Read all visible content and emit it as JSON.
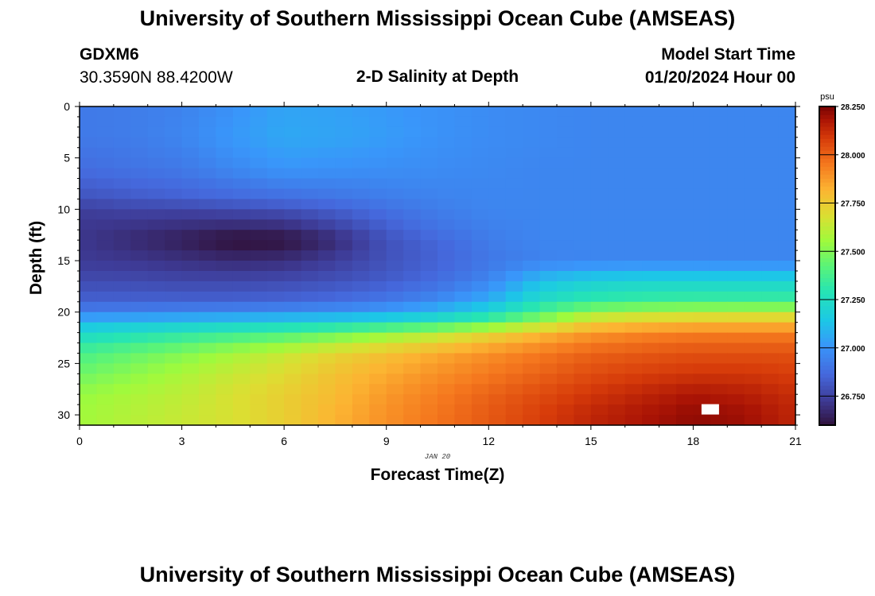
{
  "header": {
    "title": "University of Southern Mississippi Ocean Cube (AMSEAS)",
    "station_id": "GDXM6",
    "coords": "30.3590N  88.4200W",
    "subtitle": "2-D Salinity at Depth",
    "model_start_label": "Model Start Time",
    "model_start_value": "01/20/2024 Hour 00",
    "footer_title": "University of Southern Mississippi Ocean Cube (AMSEAS)"
  },
  "chart_data": {
    "type": "heatmap",
    "title": "2-D Salinity at Depth",
    "xlabel": "Forecast Time(Z)",
    "ylabel": "Depth (ft)",
    "date_label": "JAN 20",
    "xlim": [
      0,
      21
    ],
    "ylim": [
      0,
      31
    ],
    "x_ticks": [
      0,
      3,
      6,
      9,
      12,
      15,
      18,
      21
    ],
    "y_ticks": [
      0,
      5,
      10,
      15,
      20,
      25,
      30
    ],
    "colorbar": {
      "unit": "psu",
      "min": 26.6,
      "max": 28.25,
      "ticks": [
        "26.750",
        "27.000",
        "27.250",
        "27.500",
        "27.750",
        "28.000",
        "28.250"
      ],
      "tick_values": [
        26.75,
        27.0,
        27.25,
        27.5,
        27.75,
        28.0,
        28.25
      ]
    },
    "x_hours": [
      0,
      1.5,
      3,
      4.5,
      6,
      7.5,
      9,
      10.5,
      12,
      13.5,
      15,
      16.5,
      18,
      19.5,
      21
    ],
    "depths_ft": [
      0,
      3,
      6,
      9,
      10,
      12,
      13,
      15,
      17,
      19,
      20,
      21,
      22,
      24,
      26,
      28,
      30
    ],
    "values": [
      [
        26.92,
        26.93,
        26.95,
        27.0,
        27.05,
        27.04,
        27.02,
        27.0,
        26.98,
        26.97,
        26.96,
        26.96,
        26.96,
        26.96,
        26.96
      ],
      [
        26.92,
        26.93,
        26.96,
        27.02,
        27.06,
        27.05,
        27.03,
        27.0,
        26.98,
        26.97,
        26.96,
        26.96,
        26.96,
        26.96,
        26.96
      ],
      [
        26.88,
        26.9,
        26.92,
        26.97,
        27.01,
        27.0,
        26.99,
        26.98,
        26.97,
        26.96,
        26.96,
        26.96,
        26.96,
        26.96,
        26.96
      ],
      [
        26.8,
        26.82,
        26.84,
        26.86,
        26.88,
        26.9,
        26.93,
        26.95,
        26.96,
        26.96,
        26.96,
        26.96,
        26.96,
        26.96,
        26.96
      ],
      [
        26.74,
        26.76,
        26.76,
        26.78,
        26.8,
        26.84,
        26.89,
        26.93,
        26.96,
        26.96,
        26.96,
        26.96,
        26.96,
        26.96,
        26.96
      ],
      [
        26.72,
        26.7,
        26.68,
        26.66,
        26.67,
        26.74,
        26.83,
        26.9,
        26.94,
        26.96,
        26.96,
        26.96,
        26.96,
        26.96,
        26.96
      ],
      [
        26.72,
        26.68,
        26.64,
        26.59,
        26.6,
        26.68,
        26.8,
        26.86,
        26.93,
        26.96,
        26.96,
        26.96,
        26.96,
        26.96,
        26.96
      ],
      [
        26.73,
        26.72,
        26.7,
        26.68,
        26.69,
        26.74,
        26.8,
        26.85,
        26.91,
        26.95,
        26.96,
        26.96,
        26.96,
        26.96,
        26.96
      ],
      [
        26.78,
        26.78,
        26.77,
        26.77,
        26.78,
        26.8,
        26.83,
        26.88,
        26.96,
        27.12,
        27.18,
        27.2,
        27.2,
        27.2,
        27.2
      ],
      [
        26.85,
        26.85,
        26.85,
        26.85,
        26.86,
        26.88,
        26.92,
        26.98,
        27.08,
        27.25,
        27.33,
        27.35,
        27.36,
        27.36,
        27.36
      ],
      [
        26.95,
        26.96,
        26.97,
        26.98,
        27.0,
        27.02,
        27.05,
        27.12,
        27.22,
        27.4,
        27.55,
        27.6,
        27.62,
        27.63,
        27.63
      ],
      [
        27.1,
        27.12,
        27.14,
        27.16,
        27.18,
        27.2,
        27.24,
        27.3,
        27.4,
        27.55,
        27.72,
        27.76,
        27.78,
        27.78,
        27.78
      ],
      [
        27.22,
        27.26,
        27.3,
        27.34,
        27.38,
        27.44,
        27.52,
        27.6,
        27.7,
        27.8,
        27.88,
        27.92,
        27.94,
        27.94,
        27.94
      ],
      [
        27.38,
        27.44,
        27.5,
        27.57,
        27.64,
        27.72,
        27.78,
        27.84,
        27.9,
        27.95,
        28.0,
        28.02,
        28.04,
        28.04,
        28.04
      ],
      [
        27.46,
        27.52,
        27.58,
        27.64,
        27.7,
        27.78,
        27.84,
        27.9,
        27.95,
        28.0,
        28.05,
        28.08,
        28.1,
        28.1,
        28.08
      ],
      [
        27.54,
        27.58,
        27.62,
        27.68,
        27.74,
        27.8,
        27.88,
        27.94,
        28.0,
        28.05,
        28.1,
        28.14,
        28.18,
        28.16,
        28.12
      ],
      [
        27.56,
        27.6,
        27.64,
        27.68,
        27.74,
        27.82,
        27.9,
        27.96,
        28.02,
        28.08,
        28.14,
        28.18,
        28.22,
        28.2,
        28.14
      ]
    ],
    "missing_cells": [
      {
        "x_hour": 18.5,
        "depth_ft": 29.5
      }
    ]
  }
}
